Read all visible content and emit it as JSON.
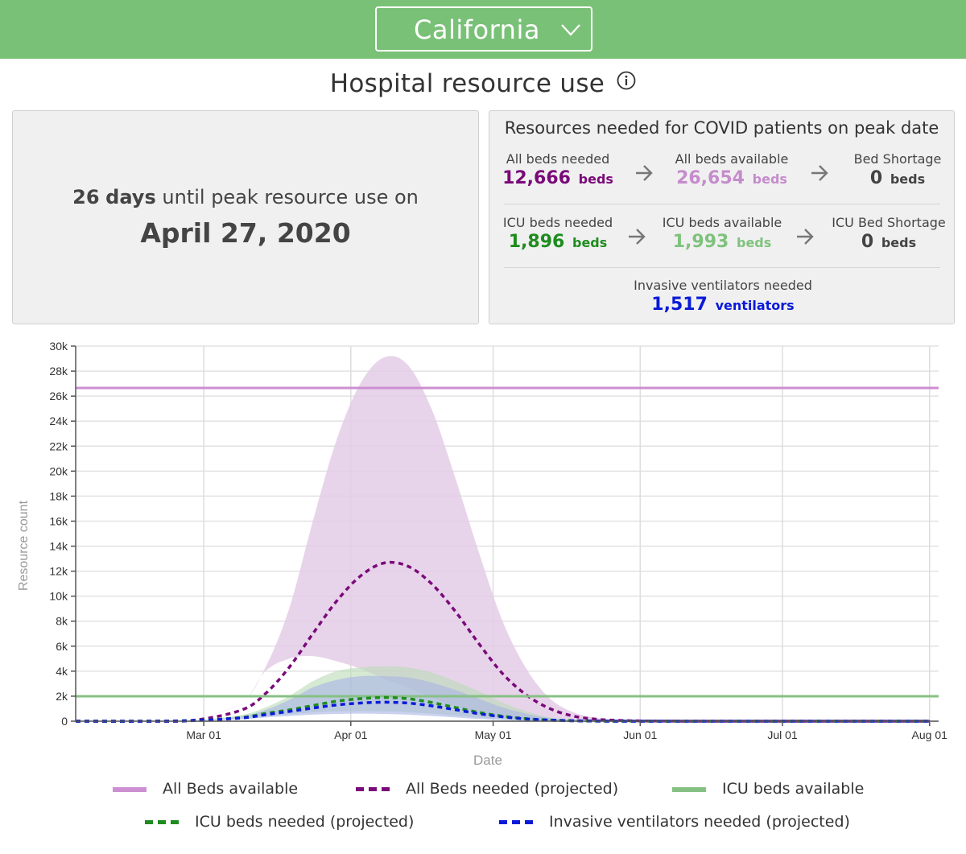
{
  "header": {
    "region": "California"
  },
  "title": "Hospital resource use",
  "peak": {
    "days_value": "26",
    "days_word": "days",
    "until_text": "until peak resource use on",
    "date": "April 27, 2020"
  },
  "resources": {
    "title": "Resources needed for COVID patients on peak date",
    "all_beds_needed": {
      "label": "All beds needed",
      "value": "12,666",
      "unit": "beds"
    },
    "all_beds_available": {
      "label": "All beds available",
      "value": "26,654",
      "unit": "beds"
    },
    "bed_shortage": {
      "label": "Bed Shortage",
      "value": "0",
      "unit": "beds"
    },
    "icu_beds_needed": {
      "label": "ICU beds needed",
      "value": "1,896",
      "unit": "beds"
    },
    "icu_beds_available": {
      "label": "ICU beds available",
      "value": "1,993",
      "unit": "beds"
    },
    "icu_bed_shortage": {
      "label": "ICU Bed Shortage",
      "value": "0",
      "unit": "beds"
    },
    "ventilators_needed": {
      "label": "Invasive ventilators needed",
      "value": "1,517",
      "unit": "ventilators"
    }
  },
  "colors": {
    "header_bg": "#7ac178",
    "all_beds_available": "#cc8fd1",
    "all_beds_needed": "#7a0a7a",
    "all_beds_band": "#e4cde6",
    "icu_beds_available": "#86c184",
    "icu_beds_needed": "#1e8c1e",
    "icu_band": "#b9dab5",
    "ventilators_needed": "#0a1ad8",
    "vent_band": "#a9b4e6",
    "icu_available_text": "#7fc27d",
    "beds_available_text": "#c58ccc"
  },
  "chart_data": {
    "type": "line",
    "xlabel": "Date",
    "ylabel": "Resource count",
    "x_ticks": [
      "Mar 01",
      "Apr 01",
      "May 01",
      "Jun 01",
      "Jul 01",
      "Aug 01"
    ],
    "y_ticks": [
      "0",
      "2k",
      "4k",
      "6k",
      "8k",
      "10k",
      "12k",
      "14k",
      "16k",
      "18k",
      "20k",
      "22k",
      "24k",
      "26k",
      "28k",
      "30k"
    ],
    "ylim": [
      0,
      30000
    ],
    "x_days": [
      0,
      15,
      25,
      35,
      40,
      45,
      50,
      55,
      60,
      65,
      70,
      75,
      80,
      85,
      90,
      95,
      100,
      105,
      110,
      115,
      120,
      130,
      140,
      155,
      180
    ],
    "series": [
      {
        "name": "All Beds available",
        "style": "solid",
        "values": [
          26654,
          26654,
          26654,
          26654,
          26654,
          26654,
          26654,
          26654,
          26654,
          26654,
          26654,
          26654,
          26654,
          26654,
          26654,
          26654,
          26654,
          26654,
          26654,
          26654,
          26654,
          26654,
          26654,
          26654,
          26654
        ]
      },
      {
        "name": "All Beds needed (projected)",
        "style": "dashed",
        "values": [
          0,
          0,
          80,
          900,
          2200,
          4300,
          7000,
          9600,
          11600,
          12650,
          12400,
          11000,
          8800,
          6200,
          3800,
          2100,
          1000,
          400,
          150,
          60,
          20,
          0,
          0,
          0,
          0
        ]
      },
      {
        "name": "ICU beds available",
        "style": "solid",
        "values": [
          1993,
          1993,
          1993,
          1993,
          1993,
          1993,
          1993,
          1993,
          1993,
          1993,
          1993,
          1993,
          1993,
          1993,
          1993,
          1993,
          1993,
          1993,
          1993,
          1993,
          1993,
          1993,
          1993,
          1993,
          1993
        ]
      },
      {
        "name": "ICU beds needed (projected)",
        "style": "dashed",
        "values": [
          0,
          0,
          60,
          300,
          620,
          900,
          1250,
          1600,
          1800,
          1896,
          1800,
          1500,
          1100,
          700,
          400,
          200,
          90,
          40,
          10,
          0,
          0,
          0,
          0,
          0,
          0
        ]
      },
      {
        "name": "Invasive ventilators needed (projected)",
        "style": "dashed",
        "values": [
          0,
          0,
          50,
          260,
          520,
          780,
          1050,
          1300,
          1450,
          1517,
          1450,
          1230,
          920,
          600,
          350,
          180,
          80,
          30,
          10,
          0,
          0,
          0,
          0,
          0,
          0
        ]
      }
    ],
    "bands": [
      {
        "name": "All beds needed range",
        "upper": [
          0,
          0,
          200,
          1500,
          4300,
          9000,
          16000,
          22500,
          27000,
          29100,
          28500,
          25000,
          19500,
          13500,
          8000,
          4200,
          1800,
          700,
          250,
          80,
          20,
          0,
          0,
          0,
          0
        ],
        "lower": [
          0,
          0,
          200,
          1500,
          4000,
          5000,
          5200,
          4800,
          4200,
          3400,
          2700,
          1900,
          1200,
          700,
          350,
          150,
          60,
          20,
          0,
          0,
          0,
          0,
          0,
          0,
          0
        ]
      },
      {
        "name": "ICU beds needed range",
        "upper": [
          0,
          0,
          60,
          500,
          1100,
          2000,
          3200,
          4000,
          4300,
          4400,
          4300,
          3900,
          3200,
          2400,
          1500,
          800,
          300,
          100,
          20,
          0,
          0,
          0,
          0,
          0,
          0
        ],
        "lower": [
          0,
          0,
          60,
          200,
          400,
          550,
          700,
          780,
          800,
          780,
          720,
          600,
          450,
          280,
          150,
          60,
          20,
          0,
          0,
          0,
          0,
          0,
          0,
          0,
          0
        ]
      },
      {
        "name": "Invasive ventilators needed range",
        "upper": [
          0,
          0,
          50,
          400,
          900,
          1700,
          2700,
          3300,
          3600,
          3600,
          3500,
          3100,
          2500,
          1800,
          1100,
          600,
          250,
          80,
          10,
          0,
          0,
          0,
          0,
          0,
          0
        ],
        "lower": [
          0,
          0,
          50,
          150,
          300,
          420,
          520,
          580,
          600,
          580,
          520,
          420,
          300,
          180,
          90,
          40,
          10,
          0,
          0,
          0,
          0,
          0,
          0,
          0,
          0
        ]
      }
    ],
    "legend": [
      "All Beds available",
      "All Beds needed (projected)",
      "ICU beds available",
      "ICU beds needed (projected)",
      "Invasive ventilators needed (projected)"
    ]
  }
}
